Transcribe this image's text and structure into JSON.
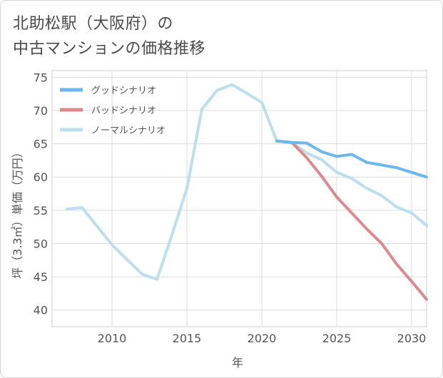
{
  "title_line1": "北助松駅（大阪府）の",
  "title_line2": "中古マンションの価格推移",
  "chart_data": {
    "type": "line",
    "xlabel": "年",
    "ylabel": "坪（3.3㎡）単価（万円）",
    "xlim": [
      2006,
      2031
    ],
    "ylim": [
      37.5,
      76
    ],
    "xticks": [
      2010,
      2015,
      2020,
      2025,
      2030
    ],
    "yticks": [
      40,
      45,
      50,
      55,
      60,
      65,
      70,
      75
    ],
    "grid": true,
    "legend_position": "top-left",
    "series": [
      {
        "name": "グッドシナリオ",
        "color": "#6bb7ee",
        "x": [
          2021,
          2022,
          2023,
          2024,
          2025,
          2026,
          2027,
          2028,
          2029,
          2030,
          2031
        ],
        "y": [
          65.4,
          65.2,
          65.1,
          63.8,
          63.1,
          63.4,
          62.2,
          61.8,
          61.4,
          60.7,
          60.0
        ]
      },
      {
        "name": "バッドシナリオ",
        "color": "#dd8a8f",
        "x": [
          2021,
          2022,
          2023,
          2024,
          2025,
          2026,
          2027,
          2028,
          2029,
          2030,
          2031
        ],
        "y": [
          65.4,
          65.2,
          62.9,
          60.1,
          57.0,
          54.6,
          52.2,
          50.0,
          46.9,
          44.3,
          41.6
        ]
      },
      {
        "name": "ノーマルシナリオ",
        "color": "#bcdff0",
        "x": [
          2007,
          2008,
          2009,
          2010,
          2011,
          2012,
          2013,
          2014,
          2015,
          2016,
          2017,
          2018,
          2019,
          2020,
          2021,
          2022,
          2023,
          2024,
          2025,
          2026,
          2027,
          2028,
          2029,
          2030,
          2031
        ],
        "y": [
          55.2,
          55.4,
          52.6,
          49.8,
          47.6,
          45.4,
          44.6,
          51.3,
          58.3,
          70.2,
          73.0,
          73.9,
          72.6,
          71.2,
          65.4,
          65.2,
          63.6,
          62.6,
          60.7,
          59.8,
          58.3,
          57.2,
          55.5,
          54.6,
          52.7
        ]
      }
    ]
  }
}
